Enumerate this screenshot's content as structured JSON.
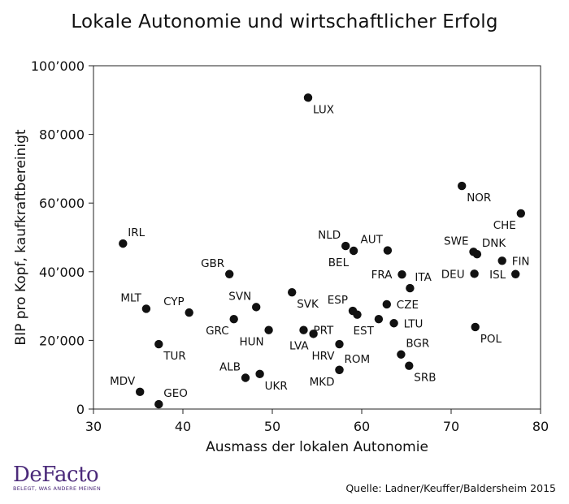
{
  "chart_data": {
    "type": "scatter",
    "title": "Lokale Autonomie und wirtschaftlicher Erfolg",
    "xlabel": "Ausmass der lokalen Autonomie",
    "ylabel": "BIP pro Kopf, kaufkraftbereinigt",
    "xlim": [
      30,
      80
    ],
    "ylim": [
      0,
      100000
    ],
    "xticks": [
      "30",
      "40",
      "50",
      "60",
      "70",
      "80"
    ],
    "yticks": [
      "0",
      "20’000",
      "40’000",
      "60’000",
      "80’000",
      "100’000"
    ],
    "grid": false,
    "points": [
      {
        "label": "LUX",
        "x": 54.0,
        "y": 90700,
        "pos": "br"
      },
      {
        "label": "NOR",
        "x": 71.2,
        "y": 65000,
        "pos": "br"
      },
      {
        "label": "CHE",
        "x": 77.8,
        "y": 57000,
        "pos": "bl"
      },
      {
        "label": "IRL",
        "x": 33.3,
        "y": 48200,
        "pos": "tr"
      },
      {
        "label": "NLD",
        "x": 58.2,
        "y": 47500,
        "pos": "tl"
      },
      {
        "label": "AUT",
        "x": 62.9,
        "y": 46200,
        "pos": "tl"
      },
      {
        "label": "BEL",
        "x": 59.1,
        "y": 46100,
        "pos": "bl"
      },
      {
        "label": "SWE",
        "x": 72.5,
        "y": 45800,
        "pos": "tl"
      },
      {
        "label": "DNK",
        "x": 72.9,
        "y": 45100,
        "pos": "tr"
      },
      {
        "label": "FIN",
        "x": 75.7,
        "y": 43200,
        "pos": "r"
      },
      {
        "label": "GBR",
        "x": 45.2,
        "y": 39300,
        "pos": "tl"
      },
      {
        "label": "FRA",
        "x": 64.5,
        "y": 39200,
        "pos": "l"
      },
      {
        "label": "DEU",
        "x": 72.6,
        "y": 39400,
        "pos": "l"
      },
      {
        "label": "ISL",
        "x": 77.2,
        "y": 39300,
        "pos": "l"
      },
      {
        "label": "ITA",
        "x": 65.4,
        "y": 35200,
        "pos": "tr"
      },
      {
        "label": "SVK",
        "x": 52.2,
        "y": 34000,
        "pos": "br"
      },
      {
        "label": "MLT",
        "x": 35.9,
        "y": 29200,
        "pos": "tl"
      },
      {
        "label": "SVN",
        "x": 48.2,
        "y": 29700,
        "pos": "tl"
      },
      {
        "label": "CZE",
        "x": 62.8,
        "y": 30500,
        "pos": "r"
      },
      {
        "label": "CYP",
        "x": 40.7,
        "y": 28100,
        "pos": "tl"
      },
      {
        "label": "ESP",
        "x": 59.0,
        "y": 28600,
        "pos": "tl"
      },
      {
        "label": "",
        "x": 59.5,
        "y": 27500,
        "pos": "r"
      },
      {
        "label": "GRC",
        "x": 45.7,
        "y": 26200,
        "pos": "bl"
      },
      {
        "label": "EST",
        "x": 61.9,
        "y": 26200,
        "pos": "bl"
      },
      {
        "label": "LTU",
        "x": 63.6,
        "y": 25000,
        "pos": "r"
      },
      {
        "label": "PRT",
        "x": 53.5,
        "y": 23000,
        "pos": "r"
      },
      {
        "label": "HUN",
        "x": 49.6,
        "y": 23000,
        "pos": "bl"
      },
      {
        "label": "LVA",
        "x": 54.6,
        "y": 21900,
        "pos": "bl"
      },
      {
        "label": "POL",
        "x": 72.7,
        "y": 23900,
        "pos": "br"
      },
      {
        "label": "TUR",
        "x": 37.3,
        "y": 18900,
        "pos": "br"
      },
      {
        "label": "HRV",
        "x": 57.5,
        "y": 18900,
        "pos": "bl"
      },
      {
        "label": "BGR",
        "x": 64.4,
        "y": 15900,
        "pos": "tr"
      },
      {
        "label": "ROM",
        "x": 57.5,
        "y": 11400,
        "pos": "tr"
      },
      {
        "label": "SRB",
        "x": 65.3,
        "y": 12600,
        "pos": "br"
      },
      {
        "label": "ALB",
        "x": 47.0,
        "y": 9100,
        "pos": "tl"
      },
      {
        "label": "UKR",
        "x": 48.6,
        "y": 10200,
        "pos": "br"
      },
      {
        "label": "MKD",
        "x": 57.5,
        "y": 11400,
        "pos": "bl"
      },
      {
        "label": "MDV",
        "x": 35.2,
        "y": 5000,
        "pos": "tl"
      },
      {
        "label": "GEO",
        "x": 37.3,
        "y": 1400,
        "pos": "tr"
      }
    ]
  },
  "brand": {
    "logo_text": "DeFacto",
    "tagline": "BELEGT, WAS ANDERE MEINEN",
    "color": "#4b2a7a"
  },
  "source": "Quelle: Ladner/Keuffer/Baldersheim 2015"
}
